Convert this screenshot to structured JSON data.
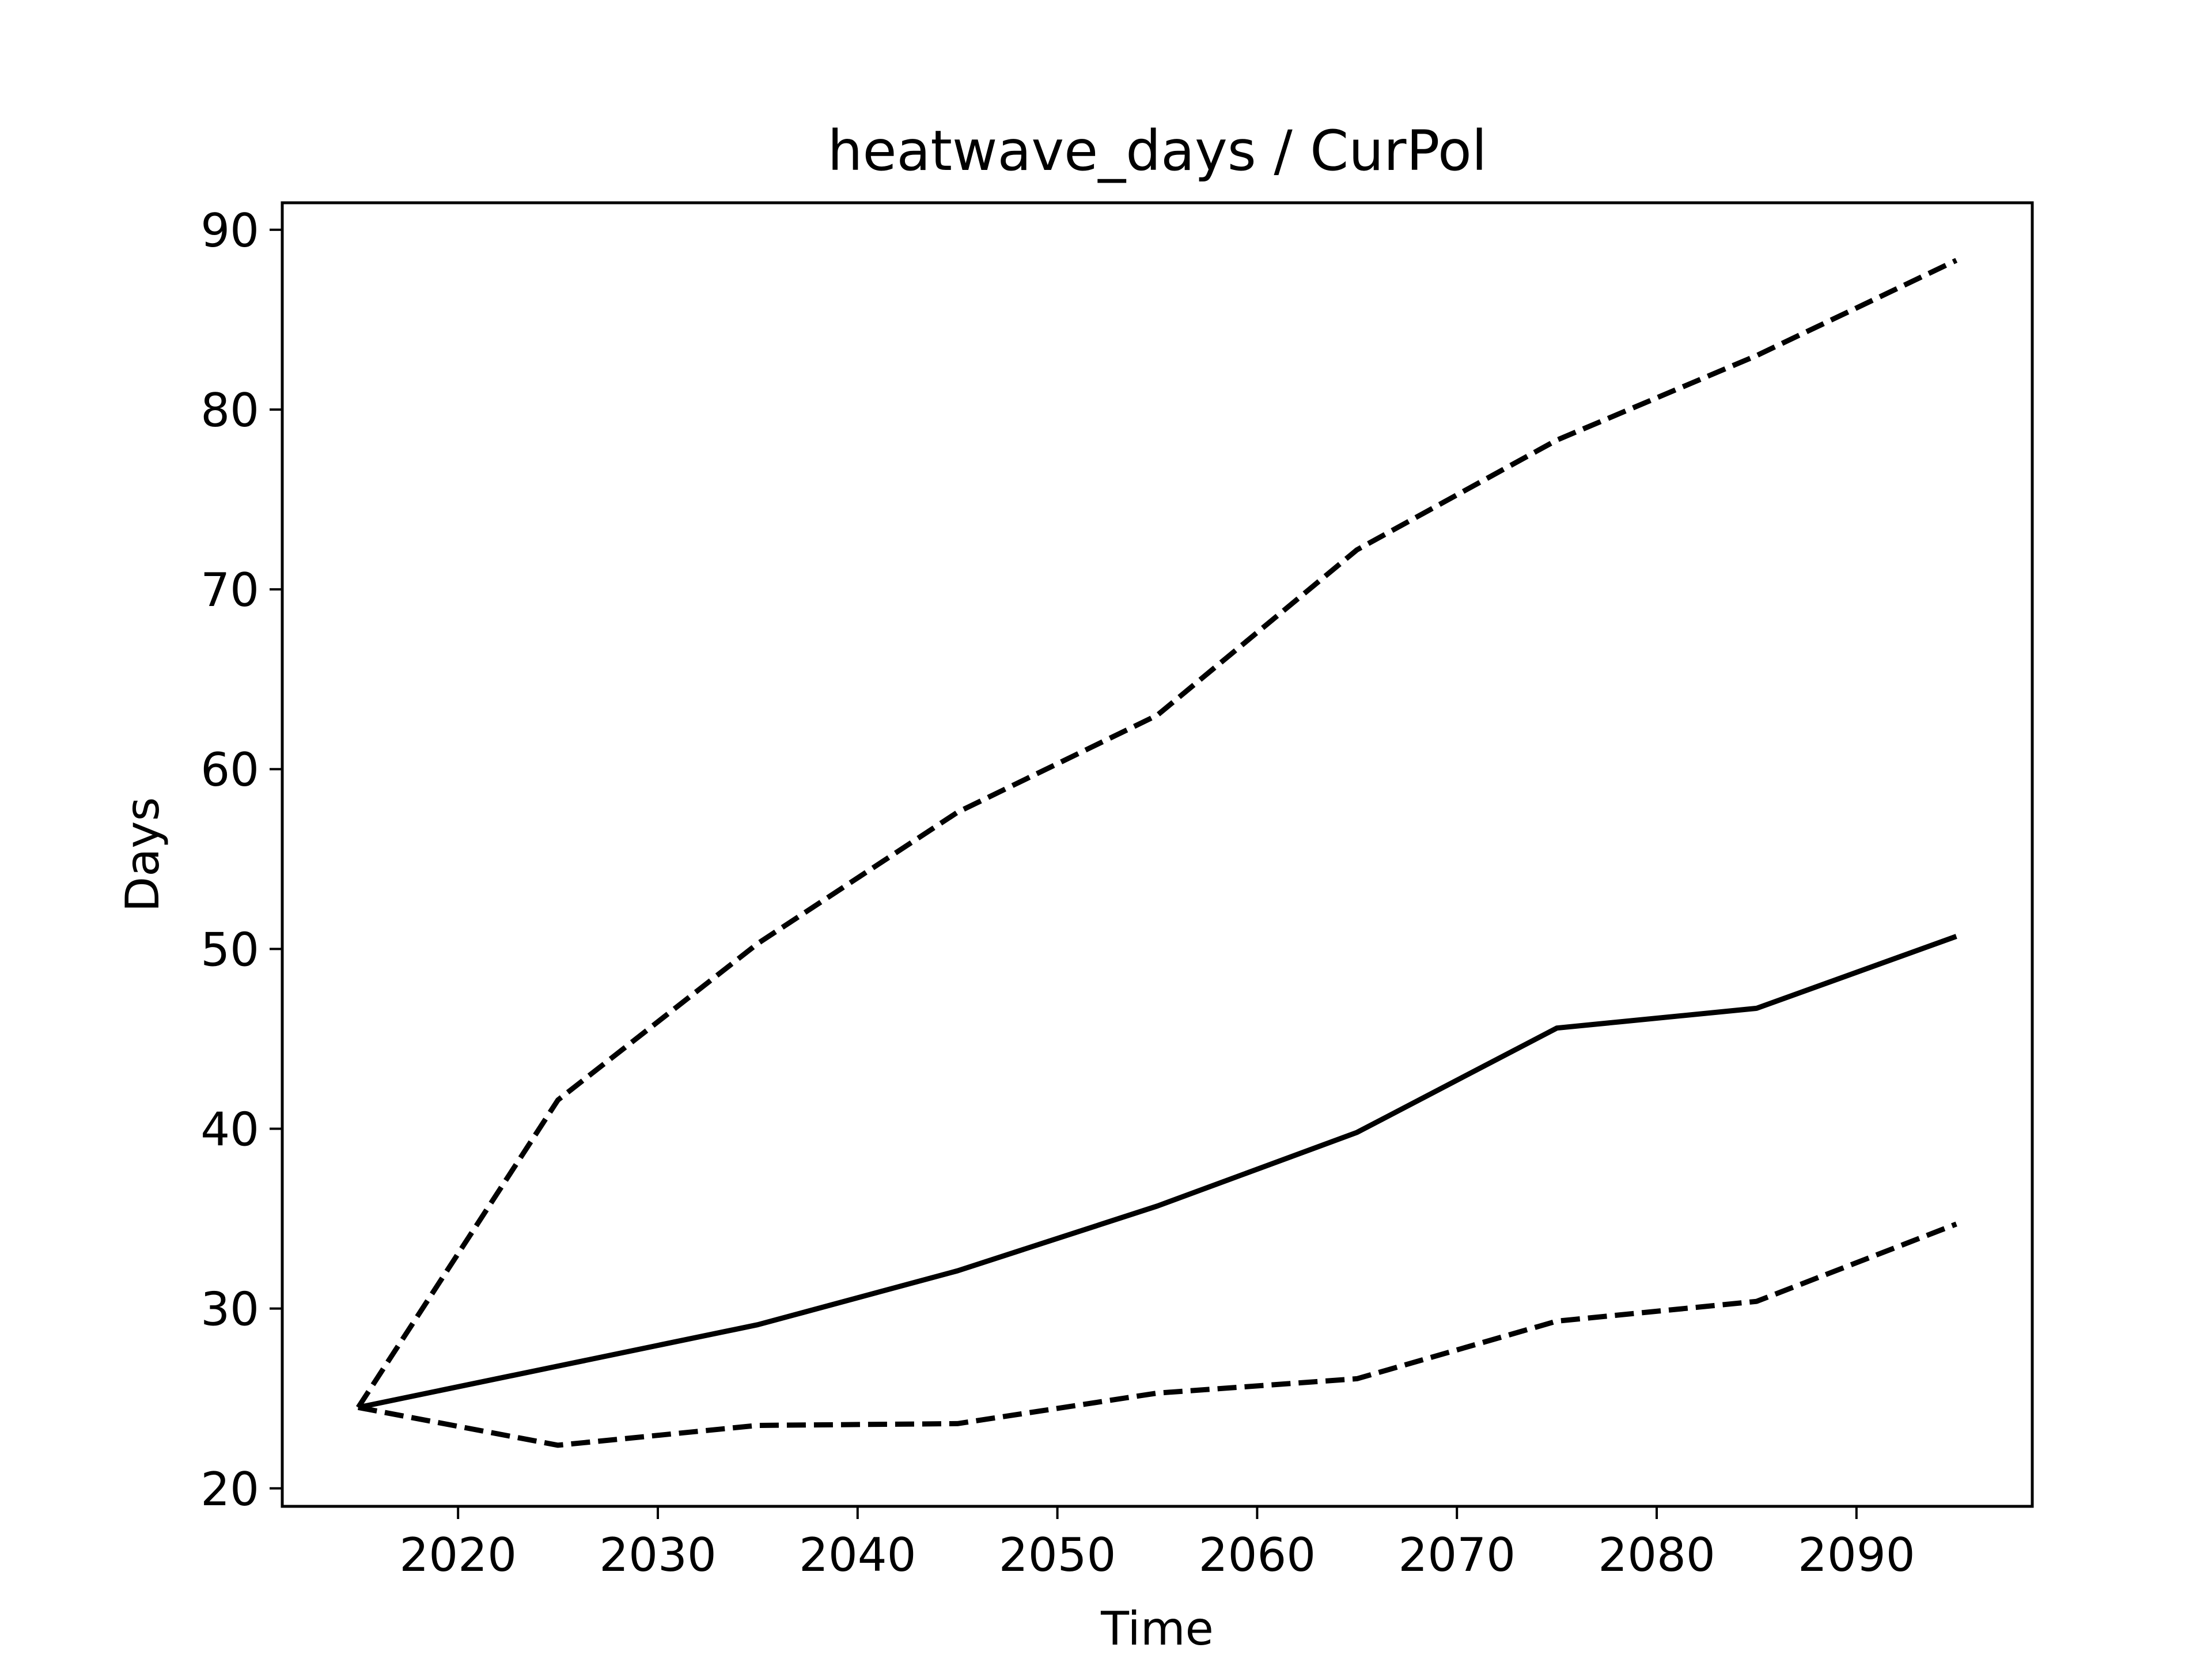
{
  "chart_data": {
    "type": "line",
    "title": "heatwave_days / CurPol",
    "xlabel": "Time",
    "ylabel": "Days",
    "xlim": [
      2011.2,
      2098.8
    ],
    "ylim": [
      19.0,
      91.5
    ],
    "xticks": [
      2020,
      2030,
      2040,
      2050,
      2060,
      2070,
      2080,
      2090
    ],
    "yticks": [
      20,
      30,
      40,
      50,
      60,
      70,
      80,
      90
    ],
    "grid": false,
    "legend": "none",
    "x": [
      2015,
      2025,
      2035,
      2045,
      2055,
      2065,
      2075,
      2085,
      2095
    ],
    "series": [
      {
        "style": "solid",
        "color": "#000000",
        "values": [
          24.5,
          26.8,
          29.1,
          32.1,
          35.7,
          39.8,
          45.6,
          46.7,
          50.7
        ]
      },
      {
        "style": "dashed",
        "color": "#000000",
        "values": [
          24.5,
          41.6,
          50.3,
          57.6,
          63.0,
          72.2,
          78.3,
          83.0,
          88.3
        ]
      },
      {
        "style": "dashed",
        "color": "#000000",
        "values": [
          24.5,
          22.4,
          23.5,
          23.6,
          25.3,
          26.1,
          29.3,
          30.4,
          34.7
        ]
      }
    ]
  }
}
